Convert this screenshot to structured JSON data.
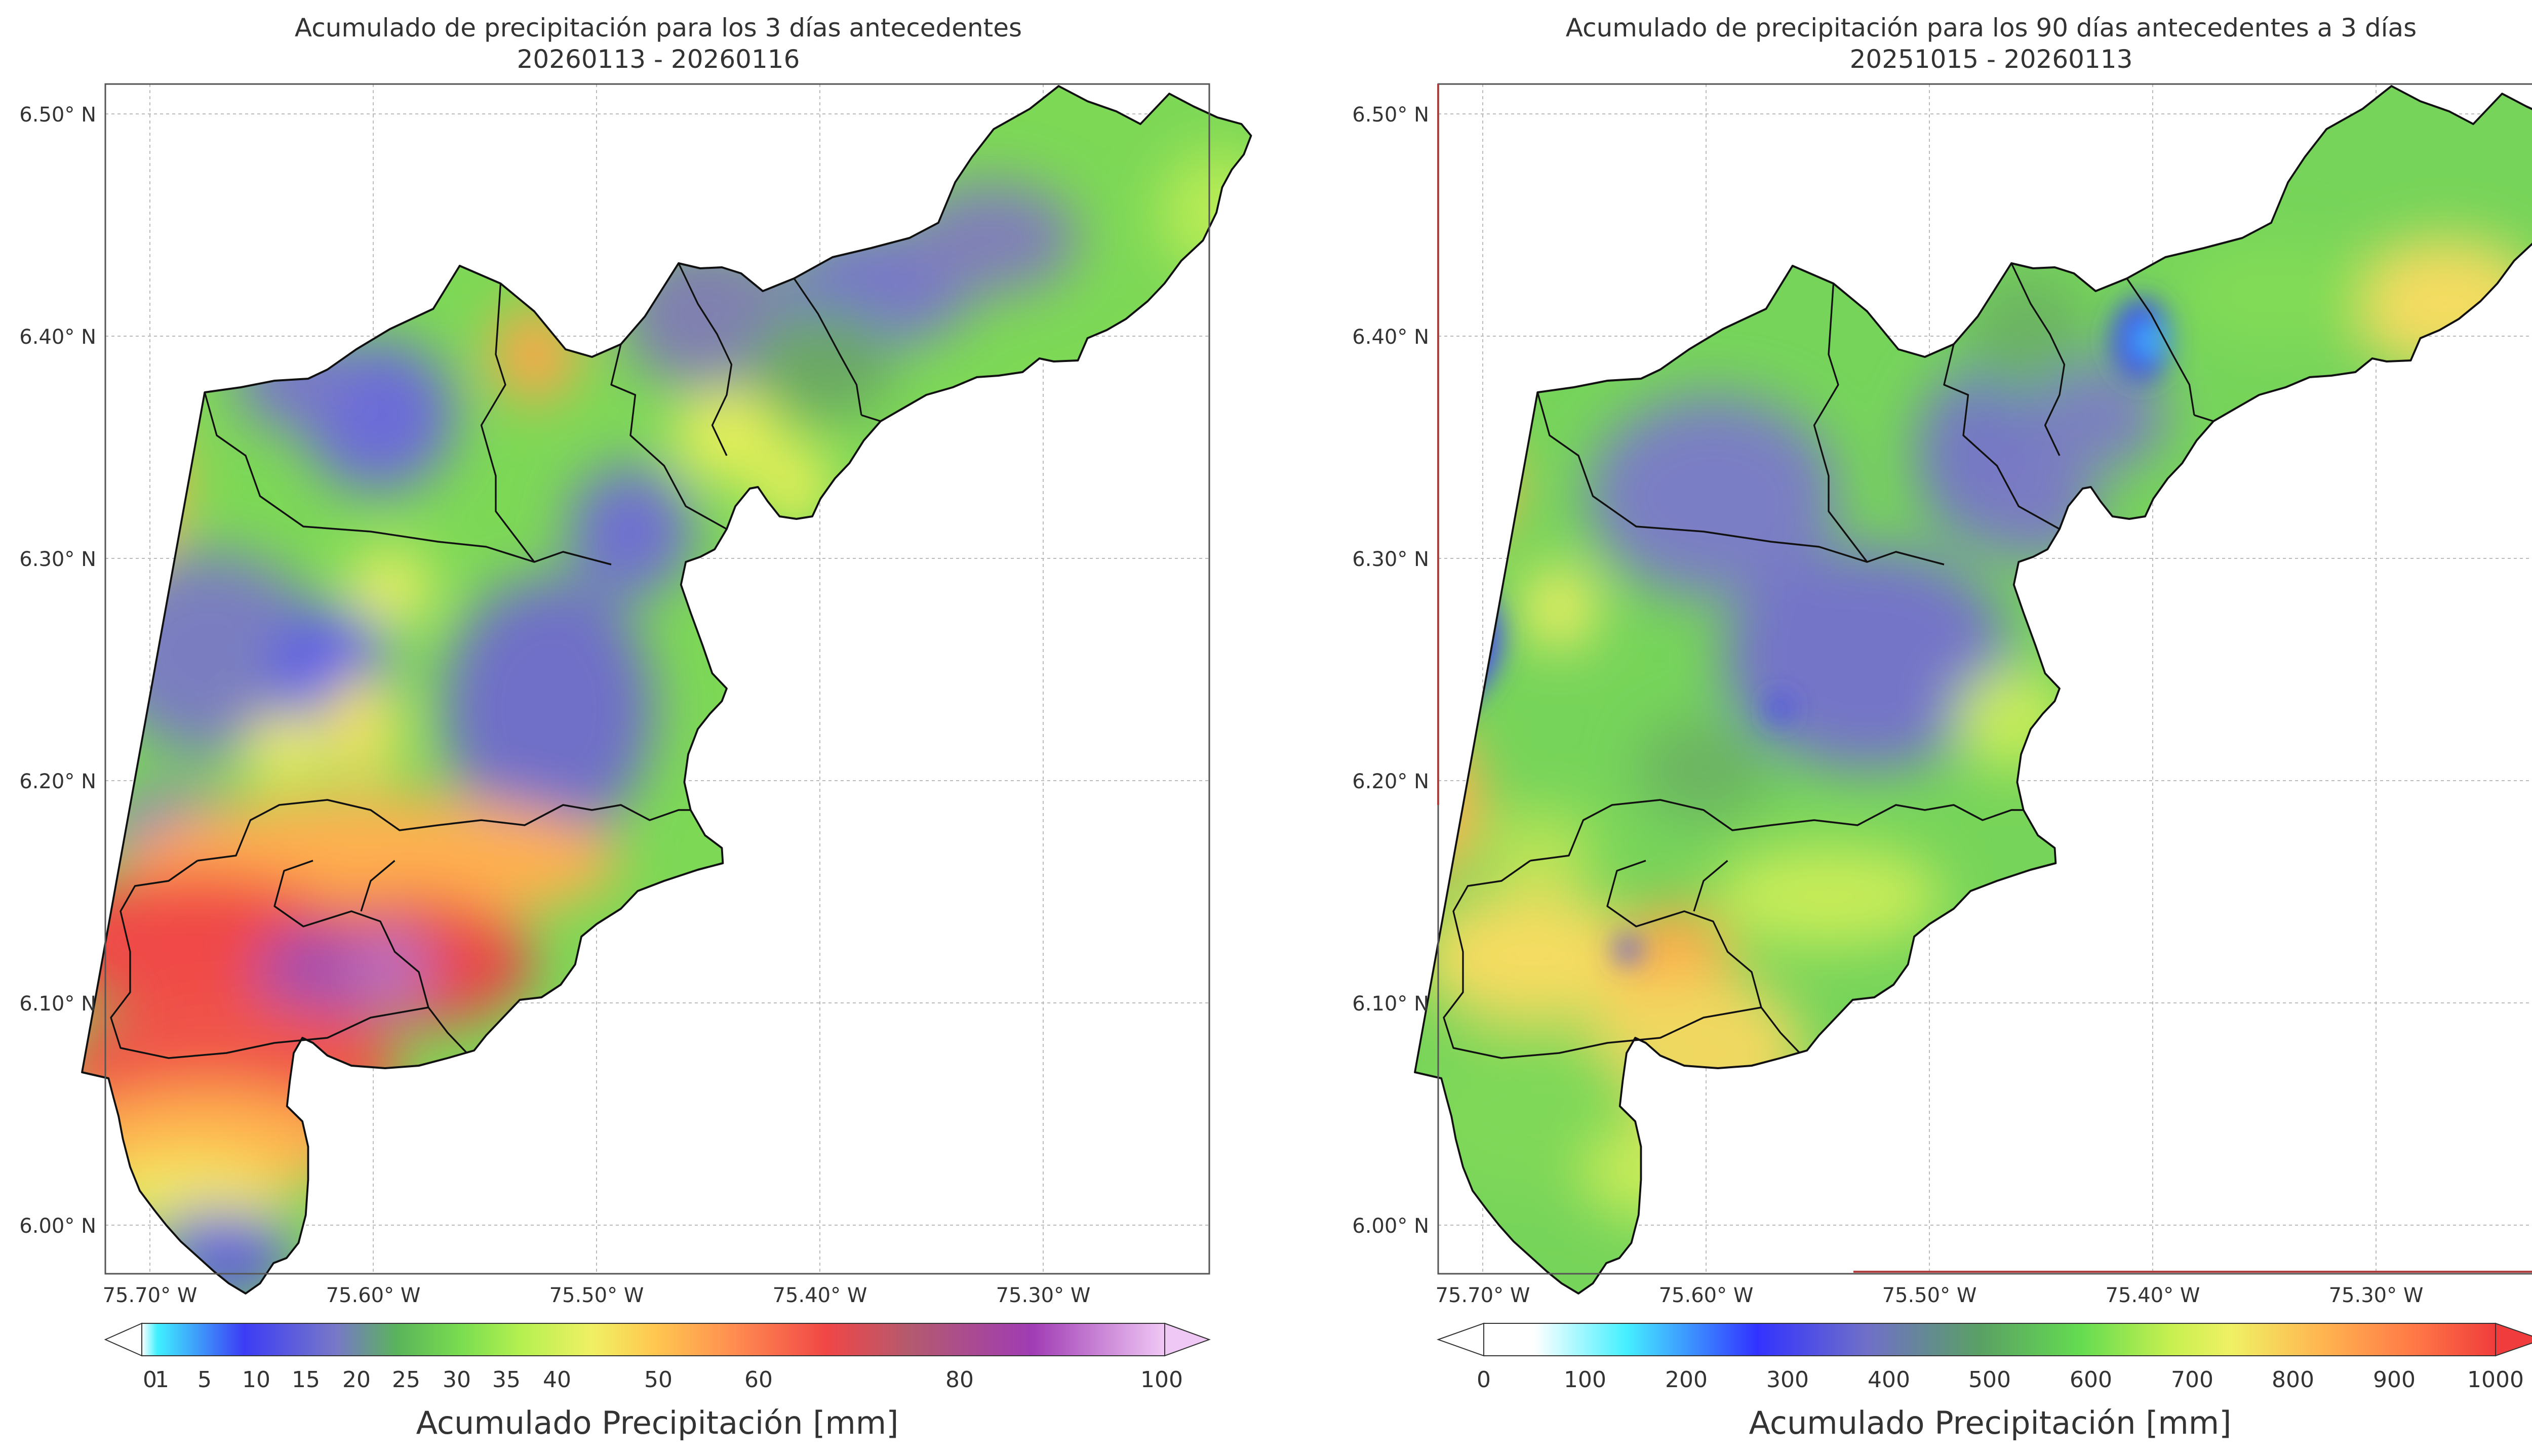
{
  "panels": [
    {
      "title_line1": "Acumulado de precipitación para los 3 días antecedentes",
      "title_line2": "20260113 - 20260116",
      "colorbar": {
        "label": "Acumulado Precipitación [mm]",
        "ticks": [
          "0",
          "1",
          "5",
          "10",
          "15",
          "20",
          "25",
          "30",
          "35",
          "40",
          "50",
          "60",
          "80",
          "100"
        ],
        "tick_values": [
          0,
          1,
          5,
          10,
          15,
          20,
          25,
          30,
          35,
          40,
          50,
          60,
          80,
          100
        ],
        "colors": [
          "#ffffff",
          "#40f0ff",
          "#3c3cf5",
          "#7878c8",
          "#5ab45a",
          "#78dc50",
          "#b4f050",
          "#f0f064",
          "#ffc850",
          "#ff8c50",
          "#f04646",
          "#b45a6e",
          "#a03cb4",
          "#f0c8f5"
        ]
      }
    },
    {
      "title_line1": "Acumulado de precipitación para los 90 días antecedentes a 3 días",
      "title_line2": "20251015 - 20260113",
      "colorbar": {
        "label": "Acumulado Precipitación [mm]",
        "ticks": [
          "0",
          "100",
          "200",
          "300",
          "400",
          "500",
          "600",
          "700",
          "800",
          "900",
          "1000"
        ],
        "tick_values": [
          0,
          100,
          200,
          300,
          400,
          500,
          600,
          700,
          800,
          900,
          1000
        ],
        "colors": [
          "#ffffff",
          "#46f0ff",
          "#3232ff",
          "#7070c8",
          "#5aa064",
          "#64dc50",
          "#c8f050",
          "#f0f064",
          "#ffb450",
          "#ff7846",
          "#f03c3c"
        ]
      }
    }
  ],
  "axes": {
    "x_ticks": [
      "75.70° W",
      "75.60° W",
      "75.50° W",
      "75.40° W",
      "75.30° W"
    ],
    "x_values": [
      -75.7,
      -75.6,
      -75.5,
      -75.4,
      -75.3
    ],
    "y_ticks": [
      "6.50° N",
      "6.40° N",
      "6.30° N",
      "6.20° N",
      "6.10° N",
      "6.00° N"
    ],
    "y_values": [
      6.5,
      6.4,
      6.3,
      6.2,
      6.1,
      6.0
    ],
    "lon_range": [
      -75.72,
      -75.22
    ],
    "lat_range": [
      5.975,
      6.51
    ],
    "grid": true
  }
}
